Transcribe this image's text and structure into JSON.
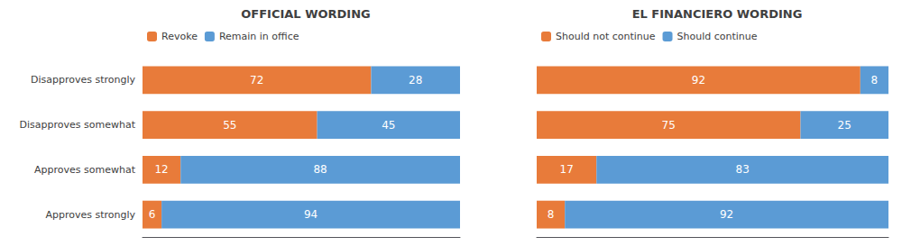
{
  "chart_data": [
    {
      "type": "bar",
      "orientation": "horizontal",
      "stacked": true,
      "title": "OFFICIAL WORDING",
      "categories": [
        "Disapproves strongly",
        "Disapproves somewhat",
        "Approves somewhat",
        "Approves strongly"
      ],
      "series": [
        {
          "name": "Revoke",
          "color": "#E87B3A",
          "values": [
            72,
            55,
            12,
            6
          ]
        },
        {
          "name": "Remain in office",
          "color": "#5B9BD5",
          "values": [
            28,
            45,
            88,
            94
          ]
        }
      ],
      "xlim": [
        0,
        100
      ],
      "data_labels": true,
      "tick_labels": "y",
      "grid": false,
      "legend": "top"
    },
    {
      "type": "bar",
      "orientation": "horizontal",
      "stacked": true,
      "title": "EL FINANCIERO WORDING",
      "categories": [
        "Disapproves strongly",
        "Disapproves somewhat",
        "Approves somewhat",
        "Approves strongly"
      ],
      "series": [
        {
          "name": "Should not continue",
          "color": "#E87B3A",
          "values": [
            92,
            75,
            17,
            8
          ]
        },
        {
          "name": "Should continue",
          "color": "#5B9BD5",
          "values": [
            8,
            25,
            83,
            92
          ]
        }
      ],
      "xlim": [
        0,
        100
      ],
      "data_labels": true,
      "tick_labels": false,
      "grid": false,
      "legend": "top"
    }
  ]
}
